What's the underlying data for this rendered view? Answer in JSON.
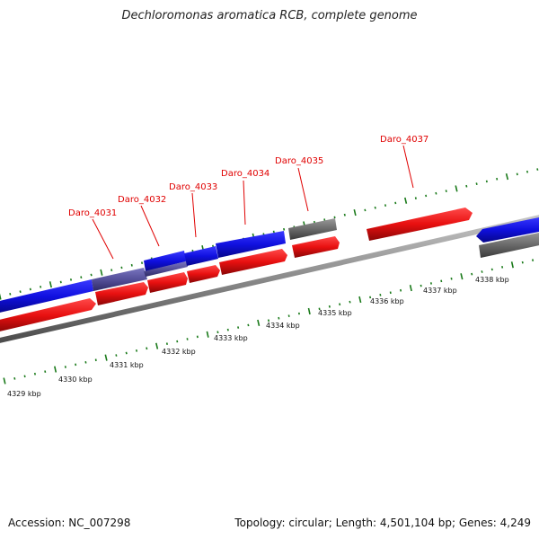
{
  "title": "Dechloromonas aromatica RCB, complete genome",
  "footer": {
    "accession": "Accession: NC_007298",
    "summary": "Topology: circular; Length: 4,501,104 bp; Genes: 4,249"
  },
  "colors": {
    "forward_gene": "#e81010",
    "reverse_gene": "#1010e0",
    "selected_gene": "#55509a",
    "gray_gene": "#6a6a6a",
    "backbone": "#8a8a8a",
    "ticks": "#1a7a1a",
    "label": "#e00000"
  },
  "genes": [
    {
      "id": "Daro_4031",
      "label": "Daro_4031"
    },
    {
      "id": "Daro_4032",
      "label": "Daro_4032"
    },
    {
      "id": "Daro_4033",
      "label": "Daro_4033"
    },
    {
      "id": "Daro_4034",
      "label": "Daro_4034"
    },
    {
      "id": "Daro_4035",
      "label": "Daro_4035"
    },
    {
      "id": "Daro_4037",
      "label": "Daro_4037"
    }
  ],
  "scale": {
    "ticks": [
      "4329 kbp",
      "4330 kbp",
      "4331 kbp",
      "4332 kbp",
      "4333 kbp",
      "4334 kbp",
      "4335 kbp",
      "4336 kbp",
      "4337 kbp",
      "4338 kbp"
    ]
  }
}
